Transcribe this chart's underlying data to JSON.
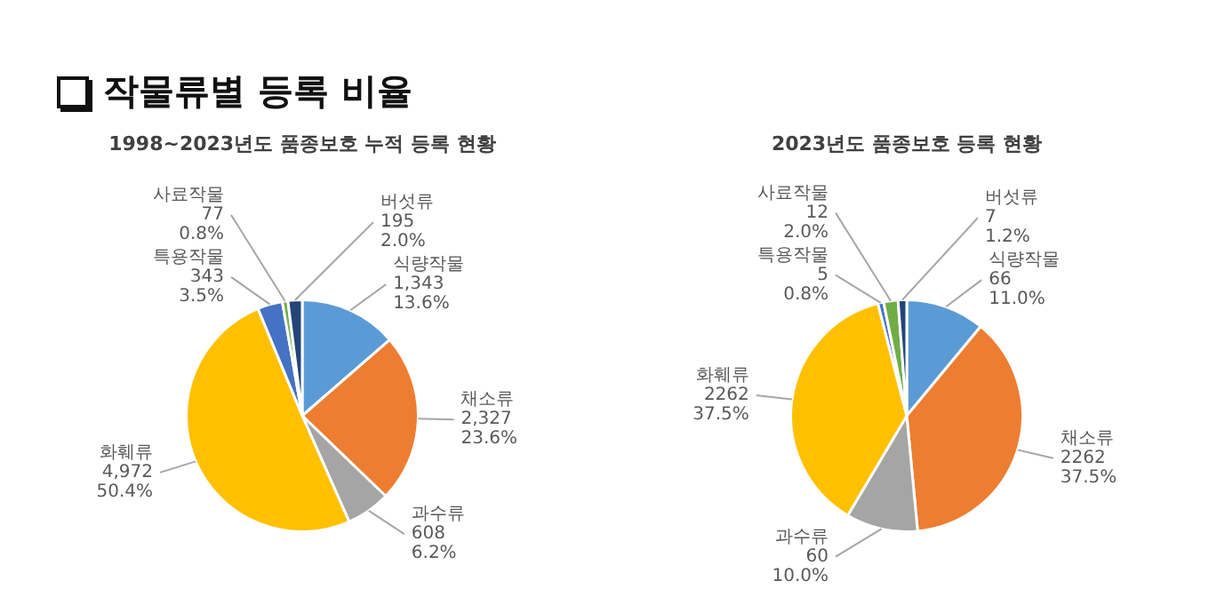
{
  "chart_data": [
    {
      "type": "pie",
      "title": "작물류별 등록 비율",
      "subtitle": "1998~2023년도 품종보호 누적 등록 현황",
      "legend": false,
      "categories": [
        "식량작물",
        "채소류",
        "과수류",
        "화훼류",
        "특용작물",
        "사료작물",
        "버섯류"
      ],
      "values": [
        1343,
        2327,
        608,
        4972,
        343,
        77,
        195
      ],
      "value_labels": [
        "1,343\n13.6%",
        "2,327\n23.6%",
        "608\n6.2%",
        "4,972\n50.4%",
        "343\n3.5%",
        "77\n0.8%",
        "195\n2.0%"
      ],
      "colors": [
        "#5b9bd5",
        "#ed7d31",
        "#a5a5a5",
        "#ffc000",
        "#4472c4",
        "#70ad47",
        "#264478"
      ]
    },
    {
      "type": "pie",
      "title": "2023년도 품종보호 등록 현황",
      "legend": false,
      "categories": [
        "식량작물",
        "채소류",
        "과수류",
        "화훼류",
        "특용작물",
        "사료작물",
        "버섯류"
      ],
      "values": [
        11.0,
        37.5,
        10.0,
        37.5,
        0.8,
        2.0,
        1.2
      ],
      "value_labels": [
        "66\n11.0%",
        "2262\n37.5%",
        "60\n10.0%",
        "2262\n37.5%",
        "5\n0.8%",
        "12\n2.0%",
        "7\n1.2%"
      ],
      "colors": [
        "#5b9bd5",
        "#ed7d31",
        "#a5a5a5",
        "#ffc000",
        "#4472c4",
        "#70ad47",
        "#264478"
      ]
    }
  ]
}
